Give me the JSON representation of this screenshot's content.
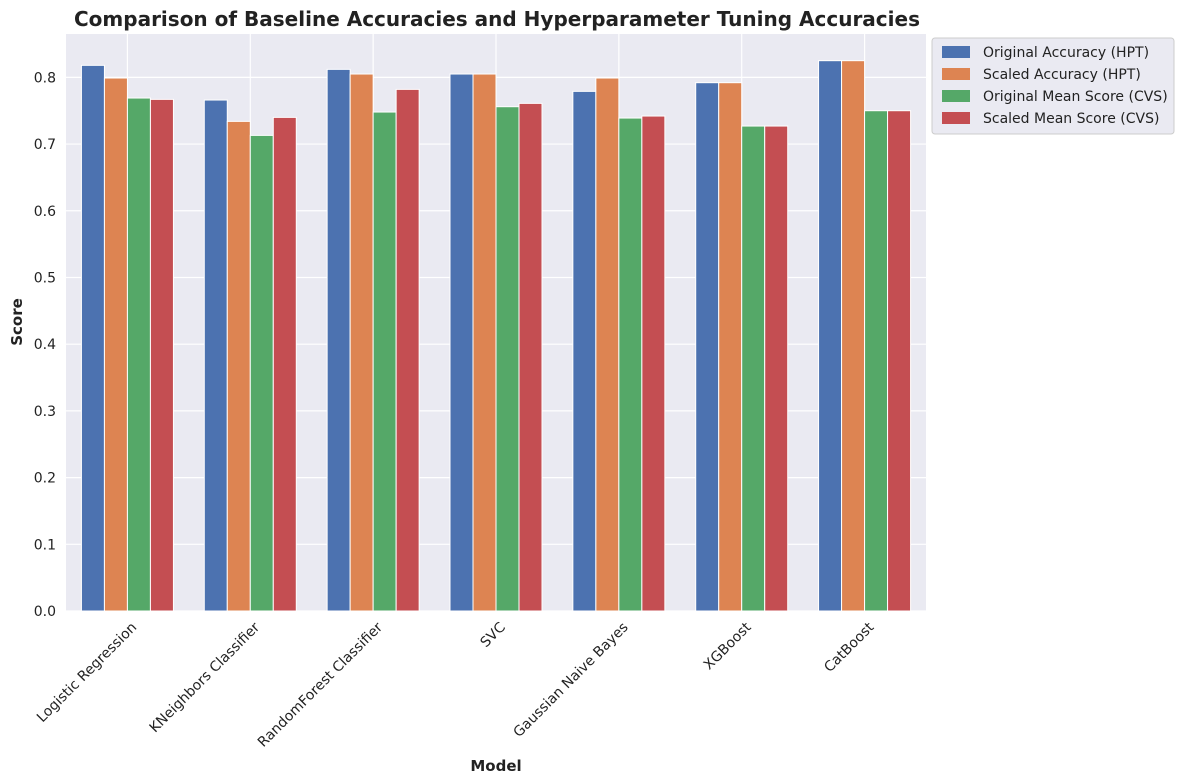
{
  "chart_data": {
    "type": "bar",
    "title": "Comparison of Baseline Accuracies and Hyperparameter Tuning Accuracies",
    "xlabel": "Model",
    "ylabel": "Score",
    "ylim": [
      0,
      0.865
    ],
    "yticks": [
      "0.0",
      "0.1",
      "0.2",
      "0.3",
      "0.4",
      "0.5",
      "0.6",
      "0.7",
      "0.8"
    ],
    "grid": true,
    "legend_position": "outside-top-right",
    "categories": [
      "Logistic Regression",
      "KNeighbors Classifier",
      "RandomForest Classifier",
      "SVC",
      "Gaussian Naive Bayes",
      "XGBoost",
      "CatBoost"
    ],
    "series": [
      {
        "name": "Original Accuracy (HPT)",
        "color": "#4C72B0",
        "values": [
          0.818,
          0.766,
          0.812,
          0.805,
          0.779,
          0.792,
          0.825
        ]
      },
      {
        "name": "Scaled Accuracy (HPT)",
        "color": "#DD8452",
        "values": [
          0.799,
          0.734,
          0.805,
          0.805,
          0.799,
          0.792,
          0.825
        ]
      },
      {
        "name": "Original Mean Score (CVS)",
        "color": "#55A868",
        "values": [
          0.769,
          0.713,
          0.748,
          0.756,
          0.739,
          0.727,
          0.75
        ]
      },
      {
        "name": "Scaled Mean Score (CVS)",
        "color": "#C44E52",
        "values": [
          0.767,
          0.74,
          0.782,
          0.761,
          0.742,
          0.727,
          0.75
        ]
      }
    ]
  }
}
